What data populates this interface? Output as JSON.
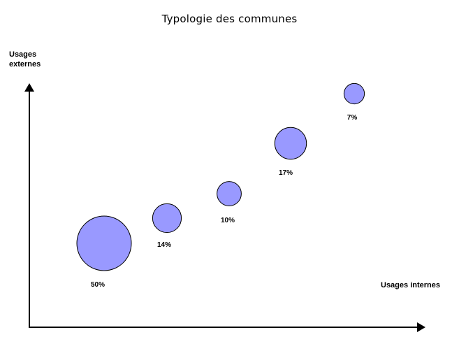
{
  "chart_data": {
    "type": "scatter",
    "title": "Typologie des communes",
    "xlabel": "Usages internes",
    "ylabel": "Usages\nexternes",
    "axis_ticks": "none",
    "grid": false,
    "legend": "none",
    "bubble_color": "#9999ff",
    "bubble_outline": "#000000",
    "points": [
      {
        "label": "50%",
        "share": 50,
        "x": 1,
        "y": 1
      },
      {
        "label": "14%",
        "share": 14,
        "x": 2,
        "y": 2
      },
      {
        "label": "10%",
        "share": 10,
        "x": 3,
        "y": 3
      },
      {
        "label": "17%",
        "share": 17,
        "x": 4,
        "y": 4
      },
      {
        "label": "7%",
        "share": 7,
        "x": 5,
        "y": 5
      }
    ]
  }
}
